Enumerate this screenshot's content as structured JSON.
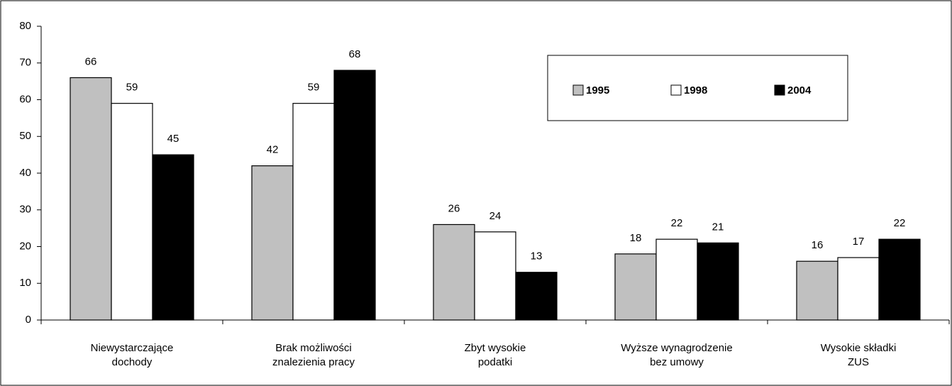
{
  "chart_data": {
    "type": "bar",
    "categories": [
      [
        "Niewystarczające",
        "dochody"
      ],
      [
        "Brak możliwości",
        "znalezienia pracy"
      ],
      [
        "Zbyt wysokie",
        "podatki"
      ],
      [
        "Wyższe wynagrodzenie",
        "bez umowy"
      ],
      [
        "Wysokie składki",
        "ZUS"
      ]
    ],
    "series": [
      {
        "name": "1995",
        "color": "#c0c0c0",
        "values": [
          66,
          42,
          26,
          18,
          16
        ]
      },
      {
        "name": "1998",
        "color": "#ffffff",
        "values": [
          59,
          59,
          24,
          22,
          17
        ]
      },
      {
        "name": "2004",
        "color": "#000000",
        "values": [
          45,
          68,
          13,
          21,
          22
        ]
      }
    ],
    "ylim": [
      0,
      80
    ],
    "yticks": [
      0,
      10,
      20,
      30,
      40,
      50,
      60,
      70,
      80
    ],
    "grid": false
  }
}
